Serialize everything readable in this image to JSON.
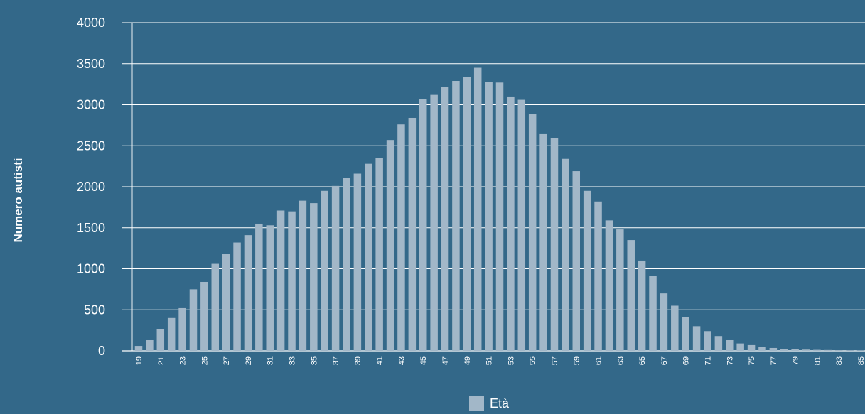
{
  "chart_data": {
    "type": "bar",
    "title": "",
    "xlabel": "",
    "ylabel": "Numero autisti",
    "ylim": [
      0,
      4000
    ],
    "yticks": [
      0,
      500,
      1000,
      1500,
      2000,
      2500,
      3000,
      3500,
      4000
    ],
    "categories": [
      "19",
      "20",
      "21",
      "22",
      "23",
      "24",
      "25",
      "26",
      "27",
      "28",
      "29",
      "30",
      "31",
      "32",
      "33",
      "34",
      "35",
      "36",
      "37",
      "38",
      "39",
      "40",
      "41",
      "42",
      "43",
      "44",
      "45",
      "46",
      "47",
      "48",
      "49",
      "50",
      "51",
      "52",
      "53",
      "54",
      "55",
      "56",
      "57",
      "58",
      "59",
      "60",
      "61",
      "62",
      "63",
      "64",
      "65",
      "66",
      "67",
      "68",
      "69",
      "70",
      "71",
      "72",
      "73",
      "74",
      "75",
      "76",
      "77",
      "78",
      "79",
      "80",
      "81",
      "82",
      "83",
      "84",
      "85"
    ],
    "xtick_labels": [
      "19",
      "21",
      "23",
      "25",
      "27",
      "29",
      "31",
      "33",
      "35",
      "37",
      "39",
      "41",
      "43",
      "45",
      "47",
      "49",
      "51",
      "53",
      "55",
      "57",
      "59",
      "61",
      "63",
      "65",
      "67",
      "69",
      "71",
      "73",
      "75",
      "77",
      "79",
      "81",
      "83",
      "85"
    ],
    "series": [
      {
        "name": "Età",
        "values": [
          60,
          130,
          260,
          400,
          520,
          750,
          840,
          1060,
          1180,
          1320,
          1410,
          1550,
          1530,
          1710,
          1700,
          1830,
          1800,
          1950,
          2010,
          2110,
          2160,
          2280,
          2350,
          2570,
          2760,
          2840,
          3070,
          3120,
          3220,
          3290,
          3340,
          3450,
          3280,
          3270,
          3100,
          3060,
          2890,
          2650,
          2590,
          2340,
          2190,
          1950,
          1820,
          1590,
          1480,
          1350,
          1100,
          910,
          700,
          550,
          410,
          300,
          240,
          180,
          130,
          90,
          70,
          50,
          35,
          25,
          20,
          15,
          12,
          10,
          8,
          6,
          5
        ]
      }
    ],
    "grid": true,
    "legend_position": "bottom-center"
  },
  "legend": {
    "label": "Età"
  },
  "colors": {
    "background": "#336889",
    "bar": "#a2b7c8",
    "grid": "#ffffff",
    "text": "#ffffff"
  }
}
